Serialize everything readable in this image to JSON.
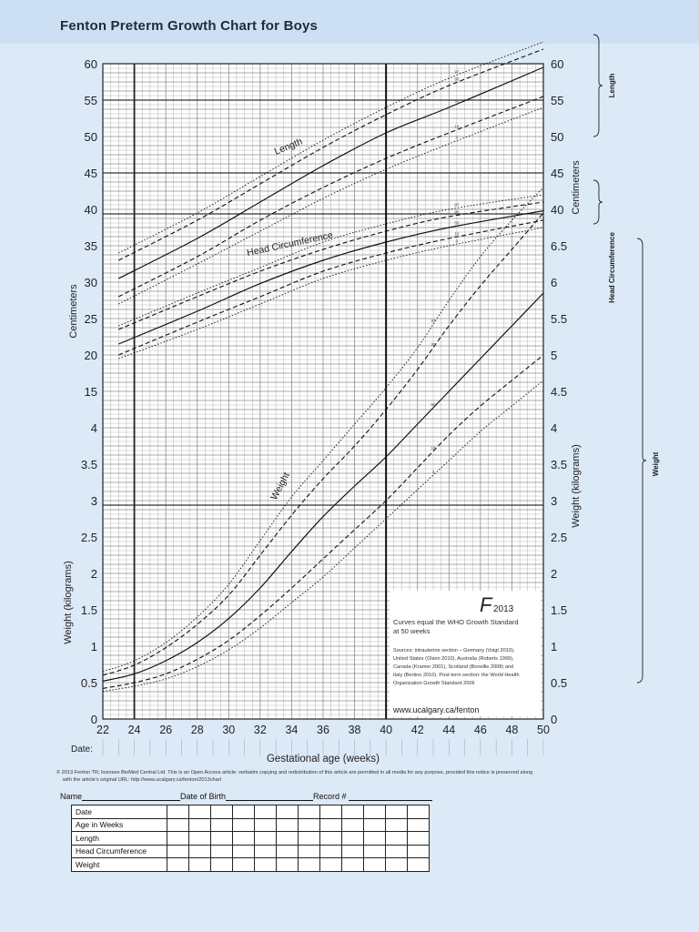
{
  "header": {
    "title": "Fenton Preterm Growth Chart for Boys"
  },
  "colors": {
    "background": "#dce9f7",
    "header": "#cde0f3",
    "grid": "#8a8f94",
    "curve": "#111111"
  },
  "chart_data": {
    "type": "line",
    "title": "Fenton Preterm Growth Chart for Boys",
    "xlabel": "Gestational age (weeks)",
    "x_range": [
      22,
      50
    ],
    "x_ticks": [
      "22",
      "24",
      "26",
      "28",
      "30",
      "32",
      "34",
      "36",
      "38",
      "40",
      "42",
      "44",
      "46",
      "48",
      "50"
    ],
    "date_label": "Date:",
    "left_axis": {
      "centimeters_label": "Centimeters",
      "weight_label": "Weight (kilograms)",
      "cm_ticks": [
        "60",
        "55",
        "50",
        "45",
        "40",
        "35",
        "30",
        "25",
        "20",
        "15"
      ],
      "kg_ticks": [
        "4",
        "3.5",
        "3",
        "2.5",
        "2",
        "1.5",
        "1",
        "0.5",
        "0"
      ]
    },
    "right_axis": {
      "centimeters_label": "Centimeters",
      "weight_label": "Weight (kilograms)",
      "cm_ticks": [
        "60",
        "55",
        "50",
        "45",
        "40"
      ],
      "kg_ticks": [
        "6.5",
        "6",
        "5.5",
        "5",
        "4.5",
        "4",
        "3.5",
        "3",
        "2.5",
        "2",
        "1.5",
        "1",
        "0.5",
        "0"
      ]
    },
    "brackets": [
      "Length",
      "Head Circumference",
      "Weight"
    ],
    "curve_labels": {
      "length": "Length",
      "head": "Head Circumference",
      "weight": "Weight"
    },
    "percentile_labels": [
      "97",
      "90",
      "50",
      "10",
      "3"
    ],
    "series": [
      {
        "name": "Length",
        "unit": "cm",
        "percentiles": {
          "3": {
            "x": [
              23,
              28,
              32,
              36,
              40,
              44,
              50
            ],
            "y": [
              27,
              32.5,
              37,
              41.5,
              45.5,
              49,
              54
            ]
          },
          "10": {
            "x": [
              23,
              28,
              32,
              36,
              40,
              44,
              50
            ],
            "y": [
              28,
              33.5,
              38.5,
              43,
              47,
              50.5,
              55.5
            ]
          },
          "50": {
            "x": [
              23,
              28,
              32,
              36,
              40,
              44,
              50
            ],
            "y": [
              30.5,
              36,
              41,
              46,
              50.5,
              54,
              59.5
            ]
          },
          "90": {
            "x": [
              23,
              28,
              32,
              36,
              40,
              44,
              50
            ],
            "y": [
              33,
              38.5,
              43.5,
              48.5,
              53,
              57,
              62
            ]
          },
          "97": {
            "x": [
              23,
              28,
              32,
              36,
              40,
              44,
              50
            ],
            "y": [
              34,
              39.5,
              44.5,
              49.5,
              54,
              58,
              63
            ]
          }
        }
      },
      {
        "name": "Head Circumference",
        "unit": "cm",
        "percentiles": {
          "3": {
            "x": [
              23,
              28,
              32,
              36,
              40,
              44,
              50
            ],
            "y": [
              19.5,
              23.5,
              27,
              30.5,
              33,
              35,
              37.5
            ]
          },
          "10": {
            "x": [
              23,
              28,
              32,
              36,
              40,
              44,
              50
            ],
            "y": [
              20,
              24.5,
              28,
              31.5,
              34,
              36,
              38.5
            ]
          },
          "50": {
            "x": [
              23,
              28,
              32,
              36,
              40,
              44,
              50
            ],
            "y": [
              21.5,
              26,
              29.8,
              33,
              35.5,
              37.5,
              39.8
            ]
          },
          "90": {
            "x": [
              23,
              28,
              32,
              36,
              40,
              44,
              50
            ],
            "y": [
              23.5,
              28,
              31.5,
              34.5,
              37,
              39,
              41
            ]
          },
          "97": {
            "x": [
              23,
              28,
              32,
              36,
              40,
              44,
              50
            ],
            "y": [
              24,
              28.5,
              32,
              35.5,
              38,
              40,
              42
            ]
          }
        }
      },
      {
        "name": "Weight",
        "unit": "kg",
        "percentiles": {
          "3": {
            "x": [
              22,
              24,
              26,
              28,
              30,
              32,
              34,
              36,
              38,
              40,
              42,
              44,
              46,
              48,
              50
            ],
            "y": [
              0.38,
              0.45,
              0.55,
              0.72,
              0.95,
              1.25,
              1.6,
              1.95,
              2.35,
              2.75,
              3.15,
              3.55,
              3.95,
              4.3,
              4.65
            ]
          },
          "10": {
            "x": [
              22,
              24,
              26,
              28,
              30,
              32,
              34,
              36,
              38,
              40,
              42,
              44,
              46,
              48,
              50
            ],
            "y": [
              0.42,
              0.5,
              0.62,
              0.82,
              1.08,
              1.42,
              1.8,
              2.2,
              2.6,
              3.0,
              3.45,
              3.9,
              4.3,
              4.65,
              5.0
            ]
          },
          "50": {
            "x": [
              22,
              24,
              26,
              28,
              30,
              32,
              34,
              36,
              38,
              40,
              42,
              44,
              46,
              48,
              50
            ],
            "y": [
              0.52,
              0.62,
              0.8,
              1.05,
              1.38,
              1.8,
              2.3,
              2.78,
              3.2,
              3.6,
              4.05,
              4.5,
              4.95,
              5.4,
              5.85
            ]
          },
          "90": {
            "x": [
              22,
              24,
              26,
              28,
              30,
              32,
              34,
              36,
              38,
              40,
              42,
              44,
              46,
              48,
              50
            ],
            "y": [
              0.6,
              0.74,
              0.98,
              1.3,
              1.7,
              2.25,
              2.8,
              3.3,
              3.75,
              4.25,
              4.8,
              5.4,
              5.95,
              6.45,
              6.95
            ]
          },
          "97": {
            "x": [
              22,
              24,
              26,
              28,
              30,
              32,
              34,
              36,
              38,
              40,
              42,
              44,
              46,
              48,
              50
            ],
            "y": [
              0.65,
              0.8,
              1.05,
              1.4,
              1.85,
              2.45,
              3.05,
              3.55,
              4.05,
              4.55,
              5.1,
              5.75,
              6.35,
              6.85,
              7.3
            ]
          }
        }
      }
    ],
    "logo": "F",
    "logo_year": "2013",
    "note_lines": [
      "Curves equal the WHO Growth Standard",
      "at 50 weeks",
      "Sources: intrauterine section – Germany (Voigt 2010),",
      "United States (Olsen 2010), Australia (Roberts 1999),",
      "Canada (Kramer 2001), Scotland (Bonellie 2008) and",
      "Italy (Bertino 2010). Post-term section: the World Health",
      "Organization Growth Standard 2006"
    ],
    "note_url": "www.ucalgary.ca/fenton"
  },
  "copyright": [
    "© 2013 Fenton TR; licensee BioMed Central Ltd. This is an Open Access article: verbatim copying and redistribution of this article are permitted in all media for any purpose, provided this notice is preserved along",
    "with the article's original URL: http://www.ucalgary.ca/fenton/2013chart"
  ],
  "record": {
    "name_label": "Name",
    "dob_label": "Date of Birth",
    "record_label": "Record #",
    "rows": [
      "Date",
      "Age in Weeks",
      "Length",
      "Head Circumference",
      "Weight"
    ],
    "columns": 12
  }
}
